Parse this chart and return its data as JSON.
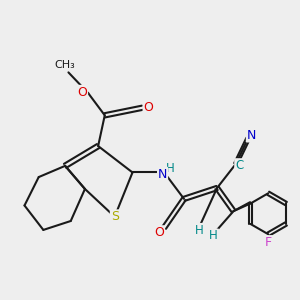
{
  "bg_color": "#eeeeee",
  "bond_color": "#1a1a1a",
  "bond_lw": 1.5,
  "dbl_off": 0.06,
  "colors": {
    "O": "#dd0000",
    "N": "#0000cc",
    "S": "#aaaa00",
    "F": "#cc44cc",
    "H": "#008888",
    "C_cyan": "#008888"
  },
  "figsize": [
    3.0,
    3.0
  ],
  "dpi": 100
}
